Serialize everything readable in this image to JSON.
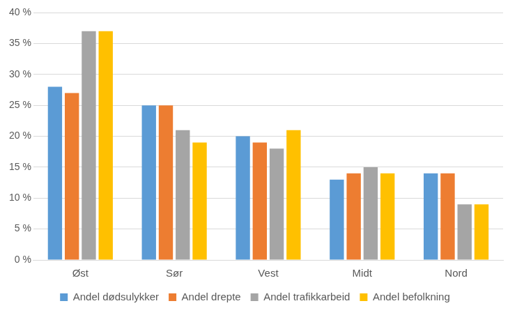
{
  "chart_data": {
    "type": "bar",
    "categories": [
      "Øst",
      "Sør",
      "Vest",
      "Midt",
      "Nord"
    ],
    "series": [
      {
        "name": "Andel dødsulykker",
        "color": "#5b9bd5",
        "values": [
          28,
          25,
          20,
          13,
          14
        ]
      },
      {
        "name": "Andel drepte",
        "color": "#ed7d31",
        "values": [
          27,
          25,
          19,
          14,
          14
        ]
      },
      {
        "name": "Andel trafikkarbeid",
        "color": "#a5a5a5",
        "values": [
          37,
          21,
          18,
          15,
          9
        ]
      },
      {
        "name": "Andel befolkning",
        "color": "#ffc000",
        "values": [
          37,
          19,
          21,
          14,
          9
        ]
      }
    ],
    "ylim": [
      0,
      40
    ],
    "yticks": [
      {
        "value": 0,
        "label": "0 %"
      },
      {
        "value": 5,
        "label": "5 %"
      },
      {
        "value": 10,
        "label": "10 %"
      },
      {
        "value": 15,
        "label": "15 %"
      },
      {
        "value": 20,
        "label": "20 %"
      },
      {
        "value": 25,
        "label": "25 %"
      },
      {
        "value": 30,
        "label": "30 %"
      },
      {
        "value": 35,
        "label": "35 %"
      },
      {
        "value": 40,
        "label": "40 %"
      }
    ],
    "grid": true,
    "legend": "bottom"
  }
}
